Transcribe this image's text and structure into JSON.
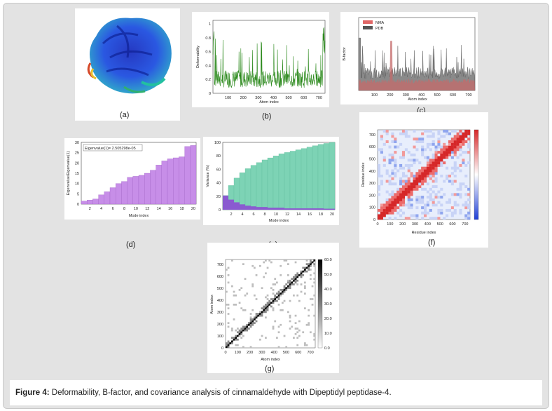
{
  "figure": {
    "caption_label": "Figure 4:",
    "caption_text": " Deformability, B-factor, and covariance analysis of cinnamaldehyde with Dipeptidyl peptidase-4."
  },
  "panels": {
    "a": {
      "label": "(a)"
    },
    "b": {
      "label": "(b)"
    },
    "c": {
      "label": "(c)"
    },
    "d": {
      "label": "(d)"
    },
    "e": {
      "label": "(e)"
    },
    "f": {
      "label": "(f)"
    },
    "g": {
      "label": "(g)"
    }
  },
  "chart_data": [
    {
      "id": "b",
      "type": "line",
      "xlabel": "Atom index",
      "ylabel": "Deformability",
      "x_ticks": [
        "100",
        "200",
        "300",
        "400",
        "500",
        "600",
        "700"
      ],
      "y_ticks": [
        "0",
        "0.2",
        "0.4",
        "0.6",
        "0.8",
        "1"
      ],
      "xlim": [
        0,
        740
      ],
      "ylim": [
        0,
        1.05
      ],
      "color": "#2e8b1f"
    },
    {
      "id": "c",
      "type": "line",
      "xlabel": "Atom index",
      "ylabel": "B-factor",
      "x_ticks": [
        "100",
        "200",
        "300",
        "400",
        "500",
        "600",
        "700"
      ],
      "legend": [
        {
          "name": "NMA",
          "color": "#e06666"
        },
        {
          "name": "PDB",
          "color": "#555555"
        }
      ],
      "xlim": [
        0,
        740
      ]
    },
    {
      "id": "d",
      "type": "bar",
      "xlabel": "Mode index",
      "ylabel": "Eigenvalue/Eigenvalue(1)",
      "annotation": "Eigenvalue(1)= 2.505298e-05",
      "categories": [
        "1",
        "2",
        "3",
        "4",
        "5",
        "6",
        "7",
        "8",
        "9",
        "10",
        "11",
        "12",
        "13",
        "14",
        "15",
        "16",
        "17",
        "18",
        "19",
        "20"
      ],
      "values": [
        1.5,
        2,
        2.5,
        4.5,
        6,
        8,
        10,
        11,
        13,
        13.5,
        14,
        15,
        16.5,
        19,
        21,
        22,
        22.5,
        23,
        28,
        28.5
      ],
      "x_ticks": [
        "2",
        "4",
        "6",
        "8",
        "10",
        "12",
        "14",
        "16",
        "18",
        "20"
      ],
      "y_ticks": [
        "0",
        "5",
        "10",
        "15",
        "20",
        "25",
        "30"
      ],
      "ylim": [
        0,
        30
      ],
      "color": "#c78ee8"
    },
    {
      "id": "e",
      "type": "bar",
      "xlabel": "Mode index",
      "ylabel": "Variance (%)",
      "categories": [
        "1",
        "2",
        "3",
        "4",
        "5",
        "6",
        "7",
        "8",
        "9",
        "10",
        "11",
        "12",
        "13",
        "14",
        "15",
        "16",
        "17",
        "18",
        "19",
        "20"
      ],
      "cumulative": [
        21,
        36,
        47,
        55,
        61,
        66,
        70,
        74,
        77,
        80,
        83,
        85,
        87,
        89,
        91,
        93,
        95,
        97,
        98.5,
        100
      ],
      "individual": [
        21,
        15,
        11,
        8,
        6,
        5,
        4,
        4,
        3,
        3,
        3,
        2,
        2,
        2,
        2,
        2,
        2,
        2,
        1.5,
        1.5
      ],
      "x_ticks": [
        "2",
        "4",
        "6",
        "8",
        "10",
        "12",
        "14",
        "16",
        "18",
        "20"
      ],
      "y_ticks": [
        "0",
        "20",
        "40",
        "60",
        "80",
        "100"
      ],
      "ylim": [
        0,
        100
      ],
      "colors": {
        "cumulative": "#7dd3b5",
        "individual": "#8a5bd0"
      }
    },
    {
      "id": "f",
      "type": "heatmap",
      "xlabel": "Residue index",
      "ylabel": "Residue index",
      "x_ticks": [
        "0",
        "100",
        "200",
        "300",
        "400",
        "500",
        "600",
        "700"
      ],
      "y_ticks": [
        "0",
        "100",
        "200",
        "300",
        "400",
        "500",
        "600",
        "700"
      ],
      "colorbar": [
        "#d62728",
        "#ffffff",
        "#1f3fd6"
      ]
    },
    {
      "id": "g",
      "type": "heatmap",
      "xlabel": "Atom index",
      "ylabel": "Atom index",
      "x_ticks": [
        "0",
        "100",
        "200",
        "300",
        "400",
        "500",
        "600",
        "700"
      ],
      "y_ticks": [
        "0",
        "100",
        "200",
        "300",
        "400",
        "500",
        "600",
        "700"
      ],
      "colorbar_ticks": [
        "60.0",
        "50.0",
        "40.0",
        "30.0",
        "20.0",
        "10.0",
        "0.0"
      ]
    }
  ]
}
